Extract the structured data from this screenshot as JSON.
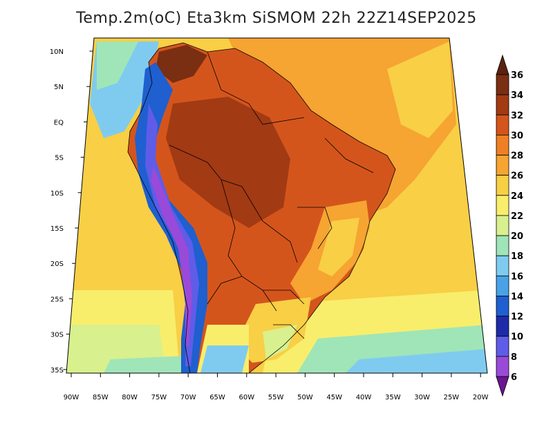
{
  "title": "Temp.2m(oC) Eta3km SiSMOM 22h 22Z14SEP2025",
  "lat_labels": [
    "10N",
    "5N",
    "EQ",
    "5S",
    "10S",
    "15S",
    "20S",
    "25S",
    "30S",
    "35S"
  ],
  "lon_labels": [
    "90W",
    "85W",
    "80W",
    "75W",
    "70W",
    "65W",
    "60W",
    "55W",
    "50W",
    "45W",
    "40W",
    "35W",
    "30W",
    "25W",
    "20W"
  ],
  "colorbar": {
    "labels": [
      "36",
      "34",
      "32",
      "30",
      "28",
      "26",
      "24",
      "22",
      "20",
      "18",
      "16",
      "14",
      "12",
      "10",
      "8",
      "6"
    ],
    "colors": [
      "#5a2210",
      "#7a2e12",
      "#a23a14",
      "#d4551c",
      "#ef7f25",
      "#f6a432",
      "#f8cf45",
      "#f8ee6c",
      "#d8f08e",
      "#9fe5b8",
      "#7fcbf0",
      "#4aa2e6",
      "#1f5fd0",
      "#1d2ba8",
      "#5f5ce8",
      "#9a4ad8",
      "#6a1590"
    ]
  },
  "colors": {
    "ocean_warm": "#f6a432",
    "ocean_cool": "#f8cf45",
    "ocean_cold": "#7fcbf0",
    "land_hot": "#d4551c",
    "andes": "#1d2ba8"
  }
}
